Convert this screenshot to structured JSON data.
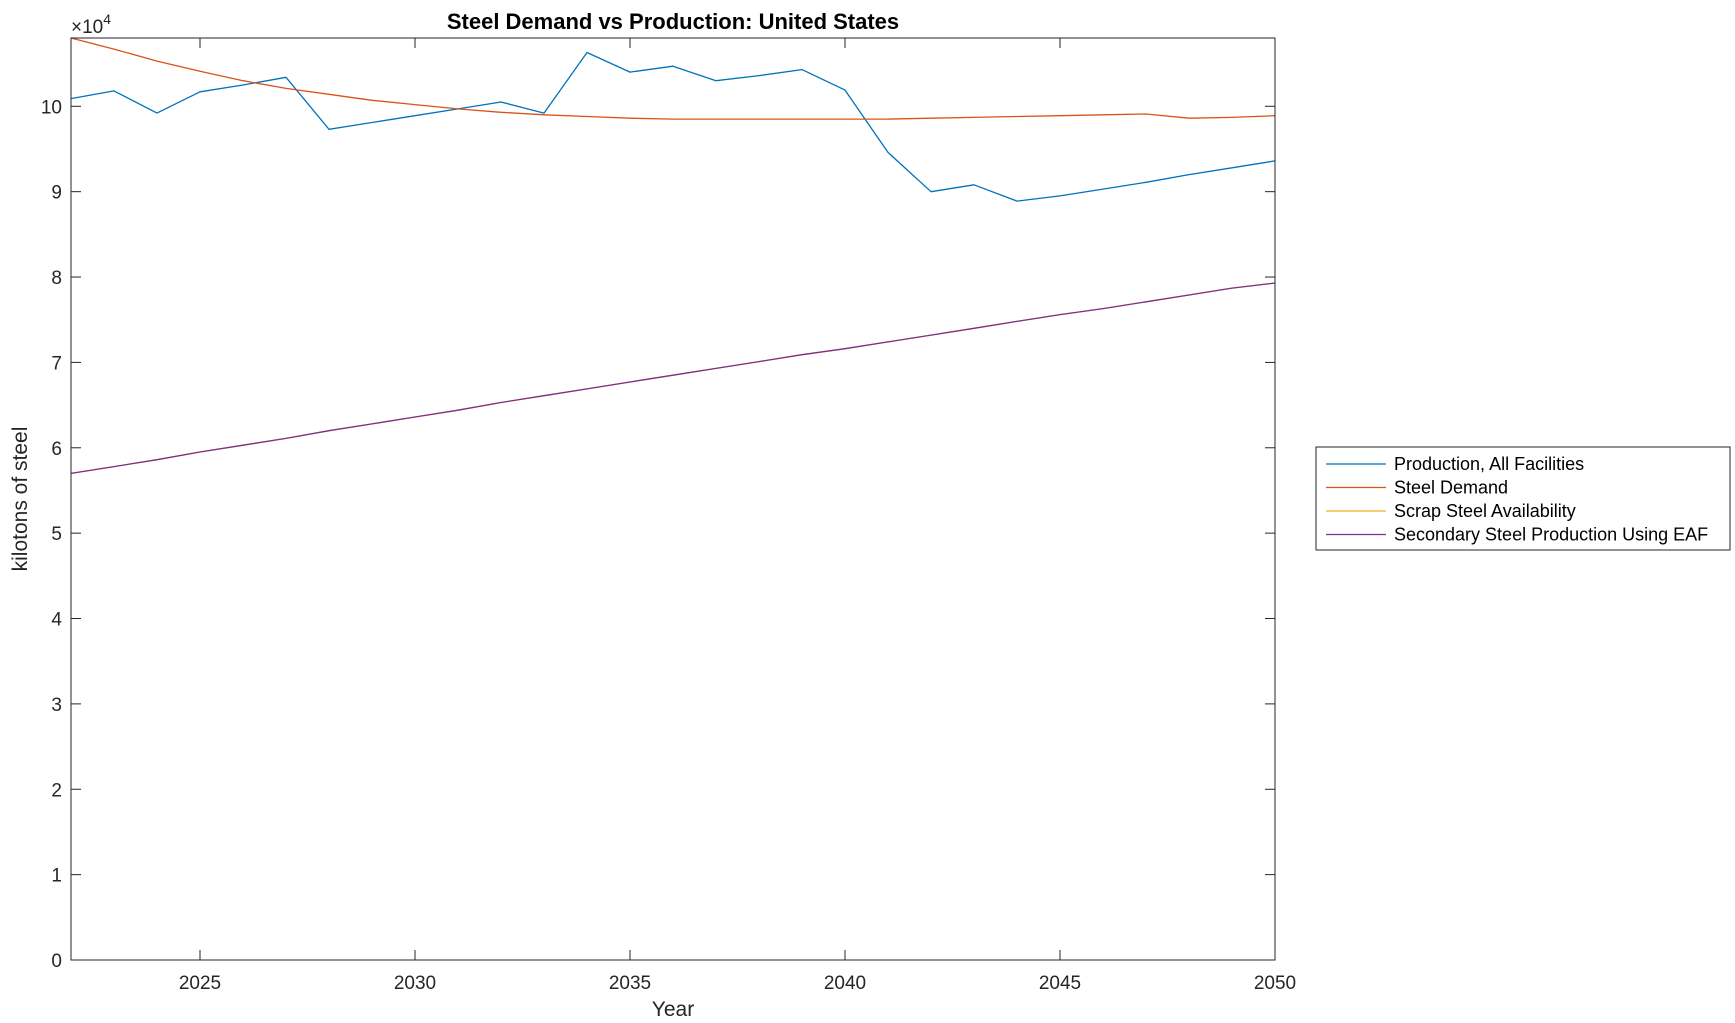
{
  "chart_data": {
    "type": "line",
    "title": "Steel Demand vs Production: United States",
    "xlabel": "Year",
    "ylabel": "kilotons of steel",
    "xlim": [
      2022,
      2050
    ],
    "ylim": [
      0,
      108000
    ],
    "y_exponent_label": "×10",
    "y_exponent_power": "4",
    "x_ticks": [
      2025,
      2030,
      2035,
      2040,
      2045,
      2050
    ],
    "x_tick_labels": [
      "2025",
      "2030",
      "2035",
      "2040",
      "2045",
      "2050"
    ],
    "y_ticks": [
      0,
      10000,
      20000,
      30000,
      40000,
      50000,
      60000,
      70000,
      80000,
      90000,
      100000
    ],
    "y_tick_labels": [
      "0",
      "1",
      "2",
      "3",
      "4",
      "5",
      "6",
      "7",
      "8",
      "9",
      "10"
    ],
    "grid": false,
    "legend_position": "outside-right",
    "x": [
      2022,
      2023,
      2024,
      2025,
      2026,
      2027,
      2028,
      2029,
      2030,
      2031,
      2032,
      2033,
      2034,
      2035,
      2036,
      2037,
      2038,
      2039,
      2040,
      2041,
      2042,
      2043,
      2044,
      2045,
      2046,
      2047,
      2048,
      2049,
      2050
    ],
    "series": [
      {
        "name": "Production, All Facilities",
        "color": "#0072BD",
        "values": [
          100900,
          101800,
          99200,
          101700,
          102500,
          103400,
          97300,
          98100,
          98900,
          99700,
          100500,
          99200,
          106300,
          104000,
          104700,
          103000,
          103600,
          104300,
          101900,
          94600,
          90000,
          90800,
          88900,
          89500,
          90300,
          91100,
          92000,
          92800,
          93600
        ]
      },
      {
        "name": "Steel Demand",
        "color": "#D95319",
        "values": [
          108000,
          106700,
          105300,
          104100,
          103000,
          102100,
          101400,
          100700,
          100200,
          99700,
          99300,
          99000,
          98800,
          98600,
          98500,
          98500,
          98500,
          98500,
          98500,
          98500,
          98600,
          98700,
          98800,
          98900,
          99000,
          99100,
          98600,
          98700,
          98900
        ]
      },
      {
        "name": "Scrap Steel Availability",
        "color": "#EDB120",
        "values": [
          57000,
          57800,
          58600,
          59500,
          60300,
          61100,
          62000,
          62800,
          63600,
          64400,
          65300,
          66100,
          66900,
          67700,
          68500,
          69300,
          70100,
          70900,
          71600,
          72400,
          73200,
          74000,
          74800,
          75600,
          76300,
          77100,
          77900,
          78700,
          79300
        ]
      },
      {
        "name": "Secondary Steel Production Using EAF",
        "color": "#7E2F8E",
        "values": [
          57000,
          57800,
          58600,
          59500,
          60300,
          61100,
          62000,
          62800,
          63600,
          64400,
          65300,
          66100,
          66900,
          67700,
          68500,
          69300,
          70100,
          70900,
          71600,
          72400,
          73200,
          74000,
          74800,
          75600,
          76300,
          77100,
          77900,
          78700,
          79300
        ]
      }
    ]
  }
}
